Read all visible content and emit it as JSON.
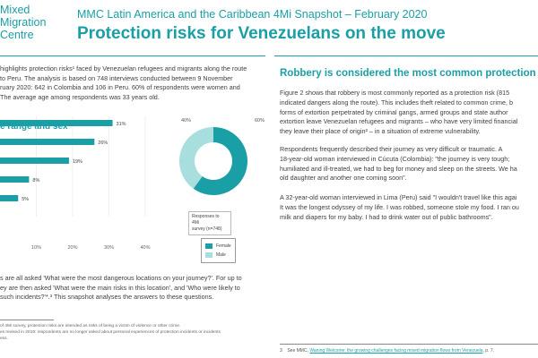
{
  "logo": {
    "line1": "Mixed",
    "line2": "Migration",
    "line3": "Centre"
  },
  "header": {
    "subtitle": "MMC Latin America and the Caribbean 4Mi Snapshot – February 2020",
    "title": "Protection risks for Venezuelans on the move"
  },
  "intro_lines": [
    "highlights protection risks¹ faced by Venezuelan refugees and migrants along the route",
    "to Peru. The analysis is based on 748 interviews conducted between 9 November",
    "ruary 2020: 642 in Colombia and 106 in Peru. 60% of respondents were women and",
    "The average age among respondents was 33 years old."
  ],
  "section_heading": "e range and sex",
  "chart_data": [
    {
      "type": "bar",
      "orientation": "horizontal",
      "values": [
        31,
        26,
        19,
        8,
        5
      ],
      "value_labels": [
        "31%",
        "26%",
        "19%",
        "8%",
        "5%"
      ],
      "x_ticks": [
        "10%",
        "20%",
        "30%",
        "40%"
      ],
      "xlim": [
        0,
        45
      ],
      "color": "#1a9fa6"
    },
    {
      "type": "pie",
      "slices": [
        {
          "name": "Female",
          "value": 60,
          "label": "60%",
          "color": "#1a9fa6"
        },
        {
          "name": "Male",
          "value": 40,
          "label": "40%",
          "color": "#a8dede"
        }
      ]
    }
  ],
  "survey_note": {
    "line1": "Responses to 4Mi",
    "line2": "survey (n=748)"
  },
  "methodology_lines": [
    "s are all asked 'What were the most dangerous locations on your journey?'. For up to",
    "ey are then asked 'What were the main risks in this location', and 'Who were likely to",
    " such incidents?'*.³ This snapshot analyses the answers to these questions."
  ],
  "footnote_lines": [
    "of 4Mi survey, protection risks are intended as risks of being a victim of violence or other crime.",
    "es revised in 2019: respondents are no longer asked about personal experiences of protection incidents or incidents",
    "ess."
  ],
  "right": {
    "heading": "Robbery is considered the most common protection",
    "para1": [
      "Figure 2 shows that robbery is most commonly reported as a protection risk (815",
      "indicated dangers along the route). This includes theft related to common crime, b",
      "forms of extortion perpetrated by criminal gangs, armed groups and state author",
      "extortion leave Venezuelan refugees and migrants – who have very limited financial",
      "they leave their place of origin² – in a situation of extreme vulnerability."
    ],
    "para2": [
      "Respondents frequently described their journey as very difficult or traumatic. A",
      "18-year-old woman interviewed in Cúcuta (Colombia): \"the journey is very tough;",
      "humiliated and ill-treated, we had to beg for money and sleep on the streets. We ha",
      "old daughter and another one coming soon\"."
    ],
    "para3": [
      "A 32-year-old woman interviewed in Lima (Peru) said \"I wouldn't travel like this agai",
      "It was the longest odyssey of my life. I was robbed, someone stole my food. I ran ou",
      "milk and diapers for my baby. I had to drink water out of public bathrooms\"."
    ],
    "footnote_num": "3",
    "footnote_prefix": "See MMC,",
    "footnote_link": "Waning Welcome: the growing challenges facing mixed migration flows from Venezuela",
    "footnote_suffix": ", p. 7."
  }
}
